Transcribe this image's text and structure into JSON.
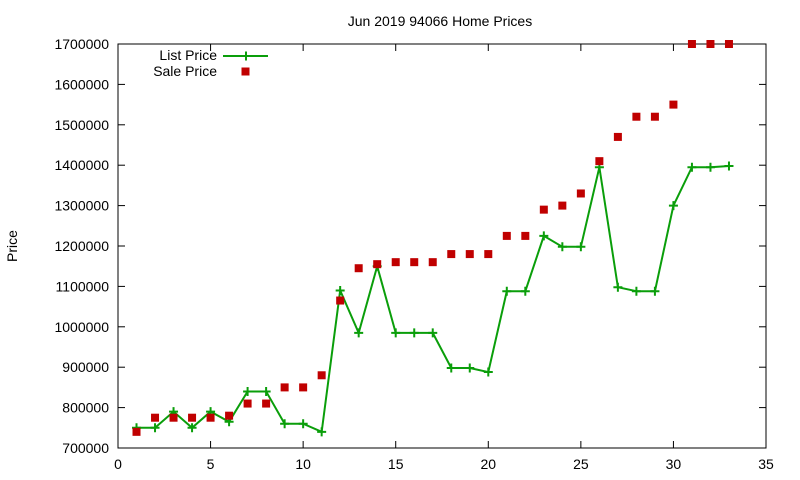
{
  "chart_data": {
    "type": "line",
    "title": "Jun 2019 94066 Home Prices",
    "xlabel": "",
    "ylabel": "Price",
    "xlim": [
      0,
      35
    ],
    "ylim": [
      700000,
      1700000
    ],
    "x_ticks": [
      0,
      5,
      10,
      15,
      20,
      25,
      30,
      35
    ],
    "y_ticks": [
      700000,
      800000,
      900000,
      1000000,
      1100000,
      1200000,
      1300000,
      1400000,
      1500000,
      1600000,
      1700000
    ],
    "grid": false,
    "legend_position": "top-left",
    "series": [
      {
        "name": "List Price",
        "style": "line-points",
        "color": "#0a9e0a",
        "x": [
          1,
          2,
          3,
          4,
          5,
          6,
          7,
          8,
          9,
          10,
          11,
          12,
          13,
          14,
          15,
          16,
          17,
          18,
          19,
          20,
          21,
          22,
          23,
          24,
          25,
          26,
          27,
          28,
          29,
          30,
          31,
          32,
          33
        ],
        "values": [
          750000,
          750000,
          790000,
          750000,
          790000,
          765000,
          840000,
          840000,
          760000,
          760000,
          740000,
          1090000,
          985000,
          1150000,
          985000,
          985000,
          985000,
          898000,
          898000,
          888000,
          1088000,
          1088000,
          1225000,
          1198000,
          1198000,
          1395000,
          1098000,
          1088000,
          1088000,
          1300000,
          1395000,
          1395000,
          1398000
        ]
      },
      {
        "name": "Sale Price",
        "style": "points",
        "color": "#c00000",
        "x": [
          1,
          2,
          3,
          4,
          5,
          6,
          7,
          8,
          9,
          10,
          11,
          12,
          13,
          14,
          15,
          16,
          17,
          18,
          19,
          20,
          21,
          22,
          23,
          24,
          25,
          26,
          27,
          28,
          29,
          30,
          31,
          32,
          33
        ],
        "values": [
          740000,
          775000,
          775000,
          775000,
          775000,
          780000,
          810000,
          810000,
          850000,
          850000,
          880000,
          1065000,
          1145000,
          1155000,
          1160000,
          1160000,
          1160000,
          1180000,
          1180000,
          1180000,
          1225000,
          1225000,
          1290000,
          1300000,
          1330000,
          1410000,
          1470000,
          1520000,
          1520000,
          1550000,
          1700000,
          1700000,
          1700000
        ]
      }
    ]
  }
}
